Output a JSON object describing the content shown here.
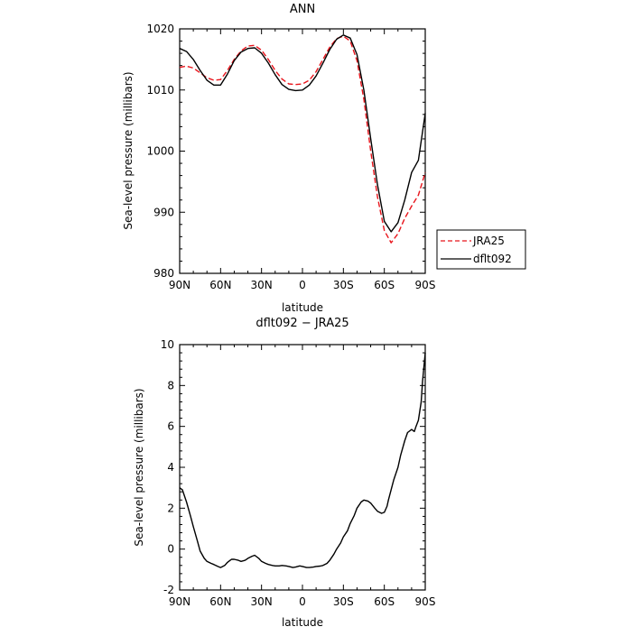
{
  "chart_data": [
    {
      "type": "line",
      "title": "ANN",
      "xlabel": "latitude",
      "ylabel": "Sea-level pressure (millibars)",
      "xticks": [
        {
          "value": -90,
          "label": "90N"
        },
        {
          "value": -60,
          "label": "60N"
        },
        {
          "value": -30,
          "label": "30N"
        },
        {
          "value": 0,
          "label": "0"
        },
        {
          "value": 30,
          "label": "30S"
        },
        {
          "value": 60,
          "label": "60S"
        },
        {
          "value": 90,
          "label": "90S"
        }
      ],
      "yticks": [
        980,
        990,
        1000,
        1010,
        1020
      ],
      "xlim": [
        -90,
        90
      ],
      "ylim": [
        980,
        1020
      ],
      "legend_position": "right",
      "series": [
        {
          "name": "JRA25",
          "color": "#e8141b",
          "dash": "dashed",
          "x": [
            -90,
            -85,
            -80,
            -75,
            -70,
            -65,
            -60,
            -55,
            -50,
            -45,
            -40,
            -35,
            -30,
            -25,
            -20,
            -15,
            -10,
            -5,
            0,
            5,
            10,
            15,
            20,
            25,
            30,
            35,
            40,
            45,
            50,
            55,
            60,
            65,
            70,
            75,
            80,
            85,
            90
          ],
          "y": [
            1013.7,
            1013.9,
            1013.6,
            1012.8,
            1012.0,
            1011.6,
            1011.7,
            1013.2,
            1015.0,
            1016.4,
            1017.2,
            1017.3,
            1016.5,
            1015.0,
            1013.2,
            1011.8,
            1011.0,
            1010.9,
            1011.0,
            1011.6,
            1013.0,
            1015.0,
            1017.0,
            1018.4,
            1018.8,
            1018.0,
            1014.8,
            1008.5,
            1000.0,
            992.5,
            987.0,
            985.0,
            986.5,
            989.0,
            991.0,
            992.8,
            996.5
          ]
        },
        {
          "name": "dflt092",
          "color": "#000000",
          "dash": "solid",
          "x": [
            -90,
            -85,
            -80,
            -75,
            -70,
            -65,
            -60,
            -55,
            -50,
            -45,
            -40,
            -35,
            -30,
            -25,
            -20,
            -15,
            -10,
            -5,
            0,
            5,
            10,
            15,
            20,
            25,
            30,
            35,
            40,
            45,
            50,
            55,
            60,
            65,
            70,
            75,
            80,
            85,
            90
          ],
          "y": [
            1016.8,
            1016.3,
            1015.0,
            1013.2,
            1011.6,
            1010.8,
            1010.8,
            1012.6,
            1014.8,
            1016.2,
            1016.8,
            1016.9,
            1016.0,
            1014.4,
            1012.5,
            1010.9,
            1010.1,
            1009.9,
            1010.0,
            1010.8,
            1012.3,
            1014.4,
            1016.6,
            1018.3,
            1019.0,
            1018.5,
            1015.8,
            1010.0,
            1002.0,
            994.5,
            988.5,
            986.8,
            988.3,
            992.0,
            996.5,
            998.5,
            1006.2
          ]
        }
      ]
    },
    {
      "type": "line",
      "title": "dflt092 − JRA25",
      "xlabel": "latitude",
      "ylabel": "Sea-level pressure (millibars)",
      "xticks": [
        {
          "value": -90,
          "label": "90N"
        },
        {
          "value": -60,
          "label": "60N"
        },
        {
          "value": -30,
          "label": "30N"
        },
        {
          "value": 0,
          "label": "0"
        },
        {
          "value": 30,
          "label": "30S"
        },
        {
          "value": 60,
          "label": "60S"
        },
        {
          "value": 90,
          "label": "90S"
        }
      ],
      "yticks": [
        -2,
        0,
        2,
        4,
        6,
        8,
        10
      ],
      "xlim": [
        -90,
        90
      ],
      "ylim": [
        -2,
        10
      ],
      "series": [
        {
          "color": "#000000",
          "dash": "solid",
          "x": [
            -90,
            -88,
            -85,
            -82,
            -80,
            -77,
            -75,
            -72,
            -70,
            -67,
            -65,
            -62,
            -60,
            -57,
            -55,
            -52,
            -50,
            -47,
            -45,
            -42,
            -40,
            -37,
            -35,
            -32,
            -30,
            -27,
            -25,
            -22,
            -20,
            -17,
            -15,
            -12,
            -10,
            -7,
            -5,
            -2,
            0,
            3,
            5,
            8,
            10,
            13,
            15,
            18,
            20,
            23,
            25,
            28,
            30,
            33,
            35,
            38,
            40,
            43,
            45,
            48,
            50,
            53,
            55,
            58,
            60,
            62,
            63,
            65,
            67,
            70,
            72,
            75,
            77,
            80,
            82,
            83,
            85,
            87,
            88,
            90
          ],
          "y": [
            3.0,
            2.9,
            2.3,
            1.6,
            1.1,
            0.4,
            -0.1,
            -0.45,
            -0.6,
            -0.7,
            -0.75,
            -0.85,
            -0.9,
            -0.8,
            -0.65,
            -0.5,
            -0.5,
            -0.55,
            -0.6,
            -0.55,
            -0.45,
            -0.35,
            -0.3,
            -0.45,
            -0.6,
            -0.7,
            -0.75,
            -0.8,
            -0.82,
            -0.82,
            -0.8,
            -0.82,
            -0.85,
            -0.9,
            -0.88,
            -0.82,
            -0.85,
            -0.9,
            -0.9,
            -0.88,
            -0.85,
            -0.83,
            -0.8,
            -0.7,
            -0.55,
            -0.25,
            0.0,
            0.3,
            0.6,
            0.9,
            1.25,
            1.65,
            2.0,
            2.3,
            2.4,
            2.35,
            2.25,
            2.0,
            1.85,
            1.75,
            1.8,
            2.1,
            2.4,
            2.9,
            3.4,
            4.0,
            4.6,
            5.3,
            5.7,
            5.85,
            5.75,
            5.95,
            6.3,
            7.2,
            8.2,
            9.6
          ]
        }
      ]
    }
  ]
}
